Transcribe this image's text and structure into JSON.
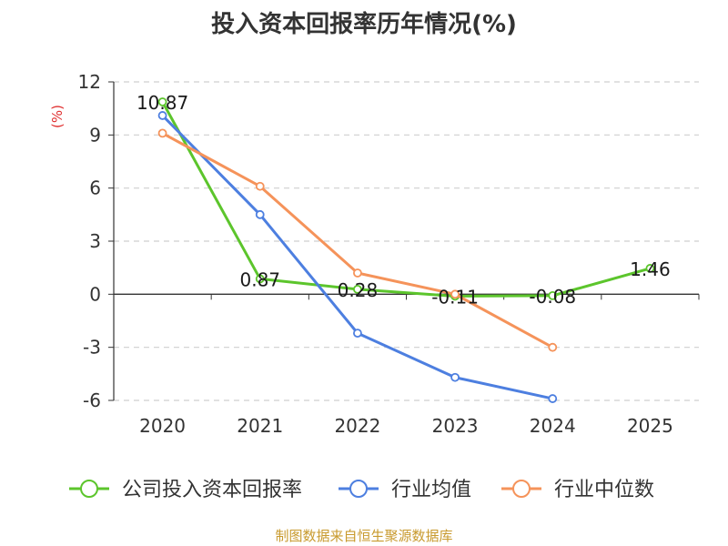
{
  "title": "投入资本回报率历年情况(%)",
  "source_note": "制图数据来自恒生聚源数据库",
  "chart_data": {
    "type": "line",
    "title": "投入资本回报率历年情况(%)",
    "ylabel": "(%)",
    "x": [
      "2020",
      "2021",
      "2022",
      "2023",
      "2024",
      "2025"
    ],
    "ylim": [
      -6,
      12
    ],
    "yticks": [
      -6,
      -3,
      0,
      3,
      6,
      9,
      12
    ],
    "grid": true,
    "legend_position": "bottom",
    "series": [
      {
        "name": "公司投入资本回报率",
        "color": "#5cc52c",
        "values": [
          10.87,
          0.87,
          0.28,
          -0.11,
          -0.08,
          1.46
        ],
        "labels": [
          "10.87",
          "0.87",
          "0.28",
          "-0.11",
          "-0.08",
          "1.46"
        ]
      },
      {
        "name": "行业均值",
        "color": "#4d7fe0",
        "values": [
          10.1,
          4.5,
          -2.2,
          -4.7,
          -5.9,
          null
        ]
      },
      {
        "name": "行业中位数",
        "color": "#f5935a",
        "values": [
          9.1,
          6.1,
          1.2,
          0.0,
          -3.0,
          null
        ]
      }
    ]
  }
}
